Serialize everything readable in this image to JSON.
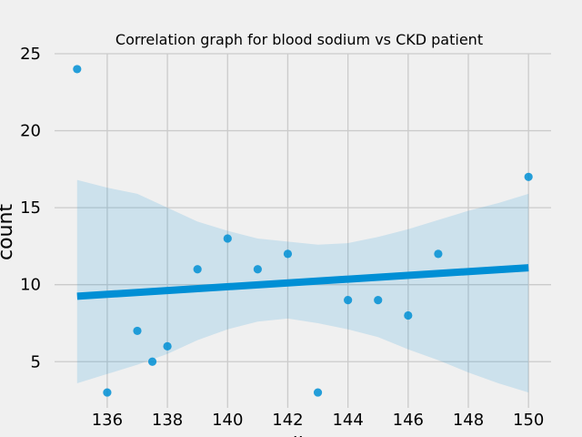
{
  "chart_data": {
    "type": "scatter",
    "title": "Correlation graph for blood sodium vs CKD patient",
    "xlabel": "sodium",
    "ylabel": "count",
    "xlim": [
      134.25,
      150.75
    ],
    "ylim": [
      2.0,
      25.0
    ],
    "xticks": [
      136,
      138,
      140,
      142,
      144,
      146,
      148,
      150
    ],
    "yticks": [
      5,
      10,
      15,
      20,
      25
    ],
    "grid": true,
    "points": [
      {
        "x": 135,
        "y": 24
      },
      {
        "x": 136,
        "y": 3
      },
      {
        "x": 137,
        "y": 7
      },
      {
        "x": 137.5,
        "y": 5
      },
      {
        "x": 138,
        "y": 6
      },
      {
        "x": 139,
        "y": 11
      },
      {
        "x": 140,
        "y": 13
      },
      {
        "x": 141,
        "y": 11
      },
      {
        "x": 142,
        "y": 12
      },
      {
        "x": 143,
        "y": 3
      },
      {
        "x": 144,
        "y": 9
      },
      {
        "x": 145,
        "y": 9
      },
      {
        "x": 146,
        "y": 8
      },
      {
        "x": 147,
        "y": 12
      },
      {
        "x": 150,
        "y": 17
      }
    ],
    "regression": {
      "x": [
        135,
        150
      ],
      "y": [
        9.25,
        11.1
      ]
    },
    "confidence_band": {
      "x": [
        135,
        136,
        137,
        138,
        139,
        140,
        141,
        142,
        143,
        144,
        145,
        146,
        147,
        148,
        149,
        150
      ],
      "upper": [
        16.8,
        16.3,
        15.9,
        15.0,
        14.1,
        13.5,
        13.0,
        12.8,
        12.6,
        12.7,
        13.1,
        13.6,
        14.2,
        14.8,
        15.3,
        15.9
      ],
      "lower": [
        3.6,
        4.2,
        4.8,
        5.5,
        6.4,
        7.1,
        7.6,
        7.8,
        7.5,
        7.1,
        6.6,
        5.8,
        5.1,
        4.3,
        3.6,
        3.0
      ]
    },
    "colors": {
      "points": "#008fd5",
      "line": "#008fd5",
      "band": "#008fd5",
      "grid": "#cbcbcb",
      "background": "#f0f0f0"
    }
  }
}
